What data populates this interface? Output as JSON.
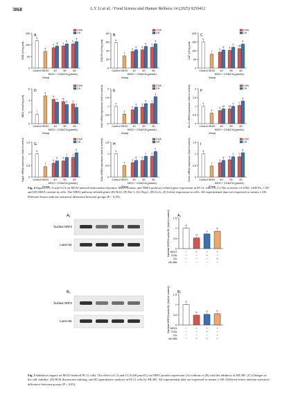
{
  "header": {
    "page_number": "3868",
    "journal": "L.Y. Li et al. / Food Science and Human Wellness 14 (2025) 9250412"
  },
  "fig4": {
    "xcats": [
      "Control",
      "MGO",
      "40",
      "50",
      "60"
    ],
    "group_line": "MGO + CGA/CA (μmol/L)",
    "group_word": "Group",
    "legend": [
      "CGA",
      "CA"
    ],
    "panels": [
      {
        "letter": "A",
        "ylabel": "SOD (U/mg prot)",
        "ymax": 150,
        "ticks": [
          0,
          50,
          100,
          150
        ],
        "control": 118,
        "mgo": 72,
        "cga": [
          88,
          96,
          104
        ],
        "ca": [
          95,
          104,
          114
        ],
        "lc": "a",
        "lm": "e",
        "lcga": [
          "d",
          "c",
          "b"
        ],
        "lca": [
          "cd",
          "b",
          "a"
        ]
      },
      {
        "letter": "B",
        "ylabel": "GSH-Px (U/mg prot)",
        "ymax": 80,
        "ticks": [
          0,
          20,
          40,
          60,
          80
        ],
        "control": 58,
        "mgo": 28,
        "cga": [
          38,
          42,
          48
        ],
        "ca": [
          42,
          50,
          56
        ],
        "lc": "a",
        "lm": "f",
        "lcga": [
          "e",
          "d",
          "c"
        ],
        "lca": [
          "d",
          "b",
          "a"
        ]
      },
      {
        "letter": "C",
        "ylabel": "CAT (U/mg prot)",
        "ymax": 200,
        "ticks": [
          0,
          50,
          100,
          150,
          200
        ],
        "control": 150,
        "mgo": 80,
        "cga": [
          92,
          102,
          112
        ],
        "ca": [
          104,
          120,
          138
        ],
        "lc": "a",
        "lm": "f",
        "lcga": [
          "e",
          "d",
          "cd"
        ],
        "lca": [
          "d",
          "c",
          "b"
        ]
      },
      {
        "letter": "D",
        "ylabel": "MDA (nmol/mg prot)",
        "ymax": 6,
        "ticks": [
          0,
          2,
          4,
          6
        ],
        "control": 1.6,
        "mgo": 4.8,
        "cga": [
          4.2,
          3.8,
          3.4
        ],
        "ca": [
          3.7,
          3.3,
          2.8
        ],
        "lc": "f",
        "lm": "a",
        "lcga": [
          "b",
          "bc",
          "c"
        ],
        "lca": [
          "c",
          "d",
          "e"
        ]
      },
      {
        "letter": "E",
        "ylabel": "Nrf2 mRNA expression (fold of control)",
        "ymax": 2.0,
        "ticks": [
          0,
          0.5,
          1.0,
          1.5,
          2.0
        ],
        "control": 1.0,
        "mgo": 0.55,
        "cga": [
          0.8,
          0.95,
          1.15
        ],
        "ca": [
          0.95,
          1.15,
          1.55
        ],
        "lc": "c",
        "lm": "f",
        "lcga": [
          "e",
          "d",
          "c"
        ],
        "lca": [
          "d",
          "b",
          "a"
        ]
      },
      {
        "letter": "F",
        "ylabel": "Ho-1 mRNA expression (fold of control)",
        "ymax": 2.0,
        "ticks": [
          0,
          0.5,
          1.0,
          1.5,
          2.0
        ],
        "control": 1.0,
        "mgo": 0.6,
        "cga": [
          0.75,
          0.85,
          1.05
        ],
        "ca": [
          0.85,
          1.0,
          1.3
        ],
        "lc": "c",
        "lm": "e",
        "lcga": [
          "d",
          "cd",
          "c"
        ],
        "lca": [
          "cd",
          "c",
          "a"
        ]
      },
      {
        "letter": "G",
        "ylabel": "Nqo1 mRNA expression (fold of control)",
        "ymax": 1.5,
        "ticks": [
          0,
          0.5,
          1.0,
          1.5
        ],
        "control": 1.0,
        "mgo": 0.45,
        "cga": [
          0.6,
          0.7,
          0.85
        ],
        "ca": [
          0.7,
          0.85,
          1.05
        ],
        "lc": "a",
        "lm": "f",
        "lcga": [
          "e",
          "d",
          "c"
        ],
        "lca": [
          "d",
          "c",
          "b"
        ]
      },
      {
        "letter": "H",
        "ylabel": "Gclc mRNA expression (fold of control)",
        "ymax": 1.5,
        "ticks": [
          0,
          0.5,
          1.0,
          1.5
        ],
        "control": 1.0,
        "mgo": 0.5,
        "cga": [
          0.62,
          0.72,
          0.9
        ],
        "ca": [
          0.72,
          0.9,
          1.1
        ],
        "lc": "a",
        "lm": "f",
        "lcga": [
          "e",
          "d",
          "c"
        ],
        "lca": [
          "d",
          "c",
          "b"
        ]
      },
      {
        "letter": "I",
        "ylabel": "Gclm mRNA expression (fold of control)",
        "ymax": 1.5,
        "ticks": [
          0,
          0.5,
          1.0,
          1.5
        ],
        "control": 1.0,
        "mgo": 0.48,
        "cga": [
          0.62,
          0.75,
          0.88
        ],
        "ca": [
          0.72,
          0.88,
          1.05
        ],
        "lc": "a",
        "lm": "f",
        "lcga": [
          "e",
          "d",
          "c"
        ],
        "lca": [
          "d",
          "c",
          "b"
        ]
      }
    ],
    "caption_bold": "Fig. 4",
    "caption_text": "Impact of CA and CGA on MGO-induced antioxidant enzymes, MDA content, and NRF2 pathway-related gene expression in PC12 cells. (A–C) The activities of SOD, GSH-Px, CAT, and (D) MDA content in cells. The NRF2 pathway-related genes (E) Nrf2, (F) Ho-1, (G) Nqo1, (H) Gclc, (I) Gclm) expression in cells. All experimental data are expressed as means ± SD. Different letters indicate statistical difference between groups (P < 0.05)."
  },
  "fig5": {
    "panelA": {
      "label": "A₁",
      "blot1": "Nuclear NRF2",
      "blot2": "Lamin B1",
      "panel_tag": "A₂",
      "ylabel": "Nuclear NRF2/Lamin B1 (fold of control)",
      "ymax": 1.5,
      "ticks": [
        0,
        0.5,
        1.0,
        1.5
      ],
      "values": [
        1.0,
        0.52,
        0.72,
        0.85
      ],
      "letters": [
        "a",
        "d",
        "c",
        "b"
      ],
      "rows": [
        {
          "name": "MGO",
          "vals": [
            "−",
            "+",
            "+",
            "+"
          ]
        },
        {
          "name": "CGA",
          "vals": [
            "−",
            "−",
            "+",
            "−"
          ]
        },
        {
          "name": "CA",
          "vals": [
            "−",
            "−",
            "−",
            "+"
          ]
        },
        {
          "name": "ML385",
          "vals": [
            "−",
            "−",
            "−",
            "−"
          ]
        }
      ]
    },
    "panelB": {
      "label": "B₁",
      "blot1": "Nuclear NRF2",
      "blot2": "Lamin B1",
      "panel_tag": "B₂",
      "ylabel": "Nuclear NRF2/Lamin B1 (fold of control)",
      "ymax": 1.5,
      "ticks": [
        0,
        0.5,
        1.0,
        1.5
      ],
      "values": [
        1.0,
        0.48,
        0.52,
        0.55
      ],
      "letters": [
        "a",
        "b",
        "b",
        "b"
      ],
      "rows": [
        {
          "name": "MGO",
          "vals": [
            "−",
            "+",
            "+",
            "+"
          ]
        },
        {
          "name": "CGA",
          "vals": [
            "−",
            "−",
            "+",
            "−"
          ]
        },
        {
          "name": "CA",
          "vals": [
            "−",
            "−",
            "−",
            "+"
          ]
        },
        {
          "name": "ML385",
          "vals": [
            "−",
            "+",
            "+",
            "+"
          ]
        }
      ]
    },
    "colors": [
      "#ffffff",
      "#d9534f",
      "#3a6fb0",
      "#f0a868"
    ],
    "caption_bold": "Fig. 5",
    "caption_text": "Inhibitors impact on MGO-induced PC12 cells. The effect of CA and CGA (60 μmol/L) on NRF2 protein expression (A) without or (B) with the inhibitor of ML385. (C) Changes of the cell viability. (D) ROS fluorescent staining, and (E) quantitative analysis in PC12 cells by ML385. All experimental data are expressed as means ± SD. Different letters indicate statistical difference between groups (P < 0.05)."
  },
  "colors": {
    "cga": "#d9534f",
    "ca": "#3a6fb0",
    "control": "#ffffff",
    "mgo": "#f3a55b"
  }
}
